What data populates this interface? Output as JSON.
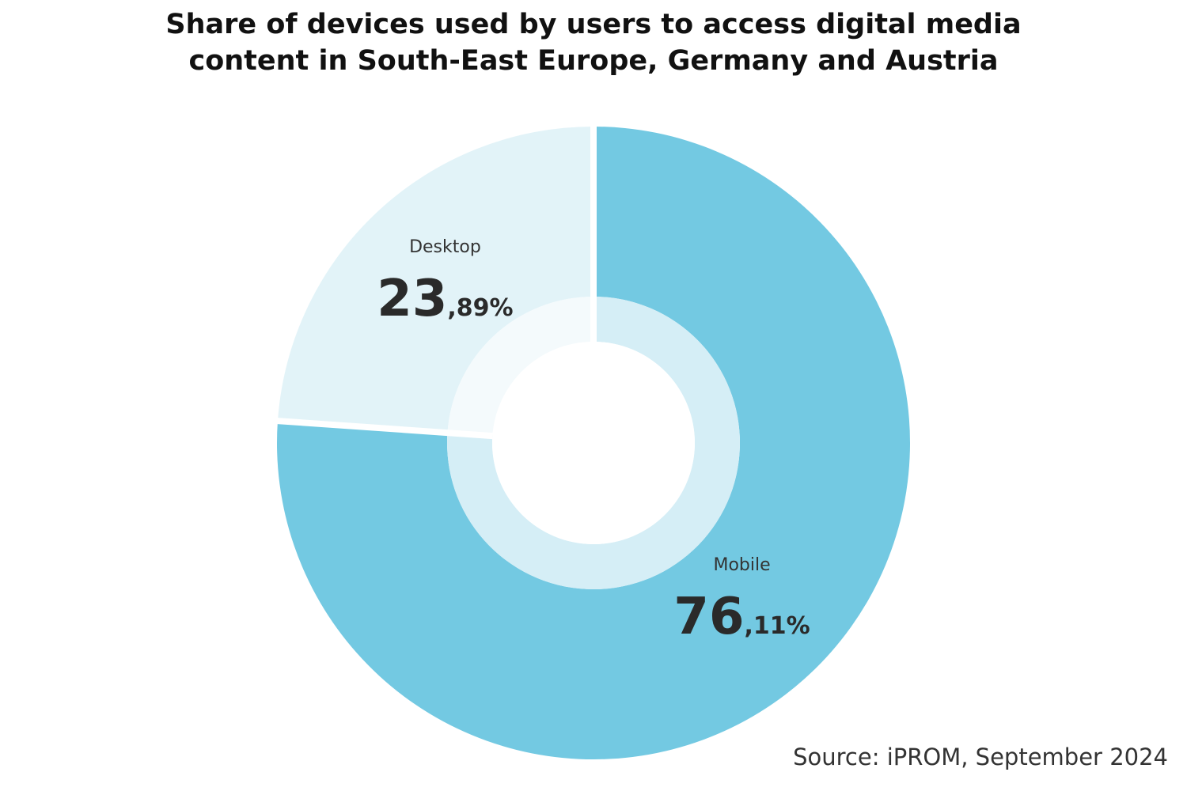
{
  "chart_data": {
    "type": "pie",
    "title_lines": [
      "Share of devices used by users to access digital media",
      "content in South-East Europe, Germany and Austria"
    ],
    "slices": [
      {
        "label": "Mobile",
        "value": 76.11,
        "value_int": "76",
        "value_dec": ",11%",
        "color": "#73c9e2",
        "inner_color": "#d5eef6"
      },
      {
        "label": "Desktop",
        "value": 23.89,
        "value_int": "23",
        "value_dec": ",89%",
        "color": "#e2f3f8",
        "inner_color": "#f4fafc"
      }
    ],
    "source": "Source: iPROM, September 2024"
  }
}
